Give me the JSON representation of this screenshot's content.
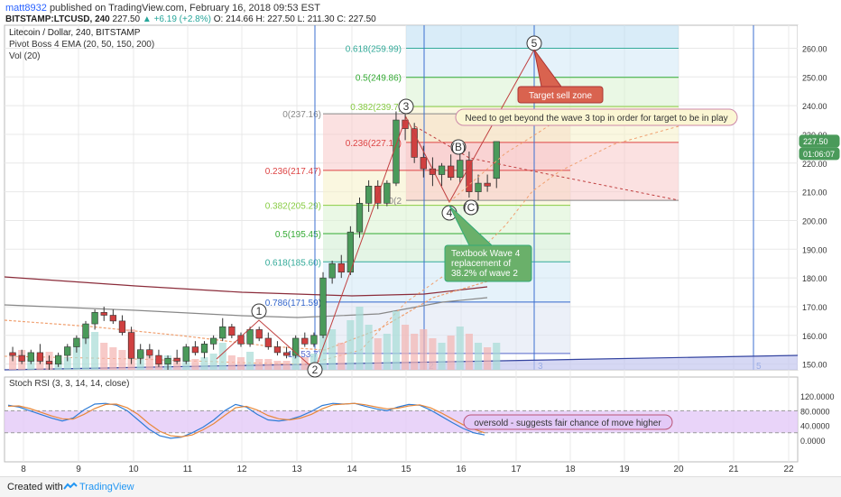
{
  "header": {
    "user": "matt8932",
    "published": "published on TradingView.com, February 16, 2018 09:53 EST",
    "symbol": "BITSTAMP:LTCUSD, 240",
    "last": "227.50",
    "change": "▲ +6.19 (+2.8%)",
    "ohlc": "O: 214.66 H: 227.50 L: 211.30 C: 227.50"
  },
  "legend": {
    "title": "Litecoin / Dollar, 240, BITSTAMP",
    "ema": "Pivot Boss 4 EMA (20, 50, 150, 200)",
    "vol": "Vol (20)",
    "stoch": "Stoch RSI (3, 3, 14, 14, close)"
  },
  "footer": {
    "created": "Created with",
    "brand": "TradingView"
  },
  "colors": {
    "up": "#26a69a",
    "down": "#ef5350",
    "grid": "#e8e8e8",
    "accent": "#2962ff"
  },
  "chart_data": {
    "type": "candlestick",
    "price_ticks": [
      "260.00",
      "250.00",
      "240.00",
      "230.00",
      "220.00",
      "210.00",
      "200.00",
      "190.00",
      "180.00",
      "170.00",
      "160.00",
      "150.00"
    ],
    "price_range": [
      148,
      268
    ],
    "x_ticks": [
      "8",
      "9",
      "10",
      "11",
      "12",
      "13",
      "14",
      "15",
      "16",
      "17",
      "18",
      "19",
      "20",
      "21",
      "22"
    ],
    "last_price_label": "227.50",
    "countdown_label": "01:06:07",
    "candles": [
      {
        "o": 154,
        "h": 156,
        "l": 151,
        "c": 153
      },
      {
        "o": 153,
        "h": 155,
        "l": 150,
        "c": 151
      },
      {
        "o": 151,
        "h": 155,
        "l": 150,
        "c": 154
      },
      {
        "o": 154,
        "h": 157,
        "l": 150,
        "c": 151
      },
      {
        "o": 151,
        "h": 153,
        "l": 148,
        "c": 150
      },
      {
        "o": 150,
        "h": 154,
        "l": 149,
        "c": 153
      },
      {
        "o": 153,
        "h": 157,
        "l": 151,
        "c": 156
      },
      {
        "o": 156,
        "h": 160,
        "l": 154,
        "c": 159
      },
      {
        "o": 159,
        "h": 165,
        "l": 157,
        "c": 164
      },
      {
        "o": 164,
        "h": 169,
        "l": 162,
        "c": 168
      },
      {
        "o": 168,
        "h": 170,
        "l": 165,
        "c": 167
      },
      {
        "o": 167,
        "h": 169,
        "l": 164,
        "c": 165
      },
      {
        "o": 165,
        "h": 167,
        "l": 160,
        "c": 161
      },
      {
        "o": 161,
        "h": 163,
        "l": 150,
        "c": 152
      },
      {
        "o": 152,
        "h": 157,
        "l": 150,
        "c": 155
      },
      {
        "o": 155,
        "h": 157,
        "l": 152,
        "c": 153
      },
      {
        "o": 153,
        "h": 155,
        "l": 149,
        "c": 150
      },
      {
        "o": 150,
        "h": 153,
        "l": 148,
        "c": 152
      },
      {
        "o": 152,
        "h": 155,
        "l": 150,
        "c": 151
      },
      {
        "o": 151,
        "h": 157,
        "l": 150,
        "c": 156
      },
      {
        "o": 156,
        "h": 158,
        "l": 153,
        "c": 154
      },
      {
        "o": 154,
        "h": 158,
        "l": 152,
        "c": 157
      },
      {
        "o": 157,
        "h": 160,
        "l": 155,
        "c": 159
      },
      {
        "o": 159,
        "h": 166,
        "l": 158,
        "c": 163
      },
      {
        "o": 163,
        "h": 164,
        "l": 159,
        "c": 160
      },
      {
        "o": 160,
        "h": 161,
        "l": 156,
        "c": 157
      },
      {
        "o": 157,
        "h": 163,
        "l": 156,
        "c": 162
      },
      {
        "o": 162,
        "h": 163,
        "l": 158,
        "c": 159
      },
      {
        "o": 159,
        "h": 161,
        "l": 155,
        "c": 156
      },
      {
        "o": 156,
        "h": 158,
        "l": 153,
        "c": 154
      },
      {
        "o": 154,
        "h": 156,
        "l": 152,
        "c": 153
      },
      {
        "o": 153,
        "h": 160,
        "l": 152,
        "c": 159
      },
      {
        "o": 159,
        "h": 161,
        "l": 156,
        "c": 157
      },
      {
        "o": 157,
        "h": 161,
        "l": 156,
        "c": 160
      },
      {
        "o": 160,
        "h": 182,
        "l": 159,
        "c": 180
      },
      {
        "o": 180,
        "h": 186,
        "l": 178,
        "c": 185
      },
      {
        "o": 185,
        "h": 188,
        "l": 180,
        "c": 182
      },
      {
        "o": 182,
        "h": 198,
        "l": 181,
        "c": 196
      },
      {
        "o": 196,
        "h": 208,
        "l": 194,
        "c": 206
      },
      {
        "o": 206,
        "h": 214,
        "l": 203,
        "c": 212
      },
      {
        "o": 212,
        "h": 214,
        "l": 204,
        "c": 206
      },
      {
        "o": 206,
        "h": 214,
        "l": 205,
        "c": 213
      },
      {
        "o": 213,
        "h": 238,
        "l": 212,
        "c": 235
      },
      {
        "o": 235,
        "h": 237,
        "l": 228,
        "c": 232
      },
      {
        "o": 232,
        "h": 234,
        "l": 220,
        "c": 222
      },
      {
        "o": 222,
        "h": 226,
        "l": 215,
        "c": 218
      },
      {
        "o": 218,
        "h": 222,
        "l": 212,
        "c": 216
      },
      {
        "o": 216,
        "h": 220,
        "l": 212,
        "c": 219
      },
      {
        "o": 219,
        "h": 223,
        "l": 214,
        "c": 215
      },
      {
        "o": 215,
        "h": 225,
        "l": 213,
        "c": 221
      },
      {
        "o": 221,
        "h": 224,
        "l": 208,
        "c": 210
      },
      {
        "o": 210,
        "h": 216,
        "l": 207,
        "c": 213
      },
      {
        "o": 213,
        "h": 216,
        "l": 210,
        "c": 212
      },
      {
        "o": 214.66,
        "h": 227.5,
        "l": 211.3,
        "c": 227.5
      }
    ],
    "fib_left": [
      {
        "ratio": "0(237.16)",
        "price": 237.16
      },
      {
        "ratio": "0.236(217.47)",
        "price": 217.47
      },
      {
        "ratio": "0.382(205.29)",
        "price": 205.29
      },
      {
        "ratio": "0.5(195.45)",
        "price": 195.45
      },
      {
        "ratio": "0.618(185.60)",
        "price": 185.6
      },
      {
        "ratio": "0.786(171.59)",
        "price": 171.59
      },
      {
        "ratio": "1(153.7)",
        "price": 153.7
      }
    ],
    "fib_right": [
      {
        "ratio": "0.618(259.99)",
        "price": 259.99
      },
      {
        "ratio": "0.5(249.86)",
        "price": 249.86
      },
      {
        "ratio": "0.382(239.7)",
        "price": 239.7
      },
      {
        "ratio": "0.236(227.19)",
        "price": 227.19
      },
      {
        "ratio": "0(2",
        "price": 207.0
      }
    ],
    "wave_labels": [
      "1",
      "3",
      "4",
      "5",
      "(B)",
      "(C)",
      "2"
    ],
    "time_labels": [
      "2",
      "3",
      "5"
    ],
    "annotations": {
      "target": "Target sell zone",
      "beyond": "Need to get beyond the wave 3 top in order for target to be in play",
      "textbook": "Textbook Wave 4 replacement of 38.2% of wave 2",
      "oversold": "oversold - suggests fair chance of move higher"
    },
    "stoch_ticks": [
      "120.0000",
      "80.0000",
      "40.0000",
      "0.0000"
    ],
    "stoch_range": [
      -10,
      125
    ],
    "stoch_k": [
      95,
      90,
      80,
      70,
      60,
      52,
      60,
      82,
      98,
      100,
      95,
      80,
      55,
      30,
      12,
      5,
      8,
      20,
      35,
      55,
      80,
      97,
      90,
      70,
      55,
      52,
      56,
      65,
      78,
      94,
      100,
      98,
      100,
      92,
      85,
      80,
      90,
      97,
      95,
      82,
      65,
      48,
      32,
      20,
      14
    ],
    "stoch_d": [
      92,
      93,
      86,
      76,
      66,
      58,
      57,
      70,
      86,
      97,
      98,
      88,
      70,
      45,
      24,
      12,
      9,
      14,
      28,
      45,
      67,
      88,
      92,
      82,
      67,
      58,
      55,
      60,
      70,
      85,
      96,
      98,
      100,
      96,
      90,
      85,
      87,
      93,
      96,
      88,
      74,
      58,
      42,
      30,
      20
    ]
  }
}
